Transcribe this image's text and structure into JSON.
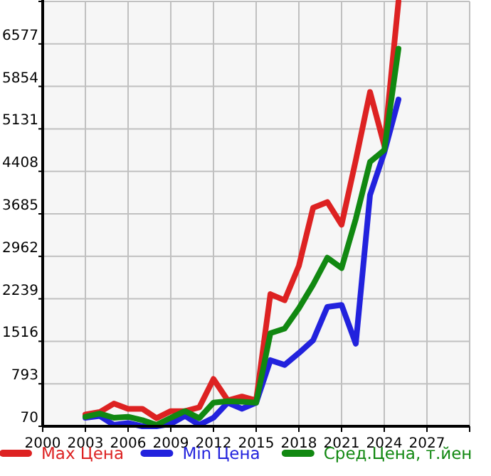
{
  "chart_data": {
    "type": "line",
    "x": [
      2003,
      2004,
      2005,
      2006,
      2007,
      2008,
      2009,
      2010,
      2011,
      2012,
      2013,
      2014,
      2015,
      2016,
      2017,
      2018,
      2019,
      2020,
      2021,
      2022,
      2023,
      2024,
      2025
    ],
    "series": [
      {
        "name": "Max Цена",
        "color": "#dd2222",
        "values": [
          270,
          311,
          456,
          367,
          367,
          207,
          328,
          328,
          391,
          874,
          511,
          576,
          511,
          2318,
          2215,
          2800,
          3788,
          3885,
          3500,
          4600,
          5758,
          4850,
          7300
        ]
      },
      {
        "name": "Min Цена",
        "color": "#2222dd",
        "values": [
          215,
          246,
          94,
          125,
          70,
          70,
          111,
          246,
          94,
          215,
          472,
          367,
          472,
          1195,
          1114,
          1316,
          1533,
          2102,
          2135,
          1475,
          4006,
          4728,
          5630
        ]
      },
      {
        "name": "Сред.Цена, т.йен",
        "color": "#118811",
        "values": [
          231,
          287,
          215,
          231,
          174,
          94,
          215,
          328,
          207,
          472,
          497,
          488,
          472,
          1653,
          1733,
          2078,
          2480,
          2938,
          2762,
          3600,
          4569,
          4770,
          6497
        ]
      }
    ],
    "xlim": [
      2000,
      2030
    ],
    "xticks": [
      2000,
      2003,
      2006,
      2009,
      2012,
      2015,
      2018,
      2021,
      2024,
      2027,
      {
        "value": 2030,
        "label": null
      }
    ],
    "ylim": [
      70,
      7300
    ],
    "yticks": [
      70,
      793,
      1516,
      2239,
      2962,
      3685,
      4408,
      5131,
      5854,
      6577,
      {
        "value": 7300,
        "label": null
      }
    ],
    "grid": true,
    "legend": "bottom",
    "marker": "none",
    "line_style": "solid"
  }
}
